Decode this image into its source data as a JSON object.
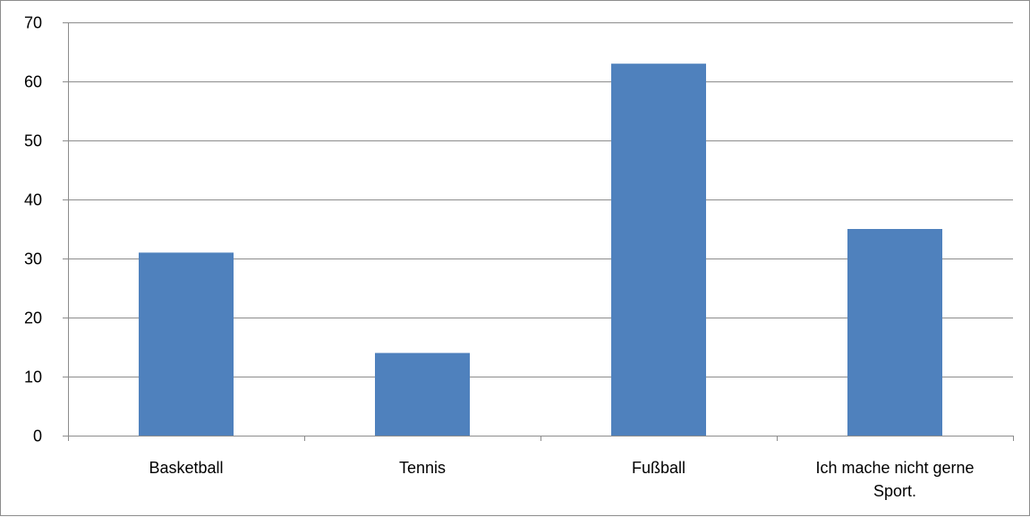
{
  "chart_data": {
    "type": "bar",
    "title": "",
    "xlabel": "",
    "ylabel": "",
    "categories": [
      "Basketball",
      "Tennis",
      "Fußball",
      "Ich mache nicht gerne Sport."
    ],
    "category_lines": [
      [
        "Basketball"
      ],
      [
        "Tennis"
      ],
      [
        "Fußball"
      ],
      [
        "Ich mache nicht gerne",
        "Sport."
      ]
    ],
    "values": [
      31,
      14,
      63,
      35
    ],
    "ylim": [
      0,
      70
    ],
    "yticks": [
      0,
      10,
      20,
      30,
      40,
      50,
      60,
      70
    ],
    "grid": true,
    "legend": "none",
    "bar_color": "#4f81bd",
    "grid_color": "#8c8c8c"
  }
}
